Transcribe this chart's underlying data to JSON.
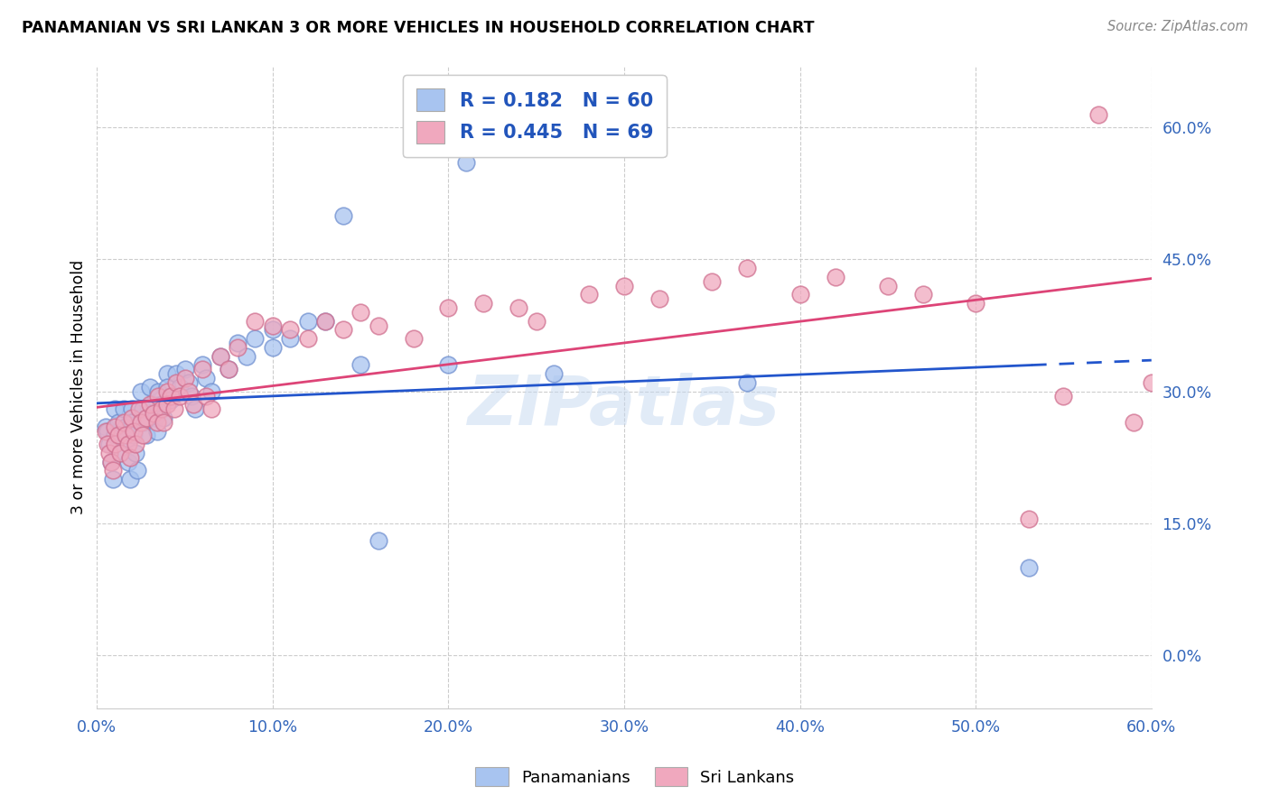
{
  "title": "PANAMANIAN VS SRI LANKAN 3 OR MORE VEHICLES IN HOUSEHOLD CORRELATION CHART",
  "source": "Source: ZipAtlas.com",
  "ylabel": "3 or more Vehicles in Household",
  "xlim": [
    0.0,
    0.6
  ],
  "ylim": [
    -0.06,
    0.67
  ],
  "ytick_vals": [
    0.0,
    0.15,
    0.3,
    0.45,
    0.6
  ],
  "xtick_vals": [
    0.0,
    0.1,
    0.2,
    0.3,
    0.4,
    0.5,
    0.6
  ],
  "R_pan": 0.182,
  "N_pan": 60,
  "R_sri": 0.445,
  "N_sri": 69,
  "pan_color": "#a8c4f0",
  "pan_edge": "#7090d0",
  "sri_color": "#f0a8be",
  "sri_edge": "#d07090",
  "pan_line_color": "#2255cc",
  "sri_line_color": "#dd4477",
  "pan_x": [
    0.005,
    0.006,
    0.007,
    0.008,
    0.009,
    0.01,
    0.01,
    0.012,
    0.013,
    0.015,
    0.016,
    0.017,
    0.018,
    0.019,
    0.02,
    0.02,
    0.021,
    0.022,
    0.023,
    0.025,
    0.026,
    0.027,
    0.028,
    0.03,
    0.032,
    0.033,
    0.034,
    0.035,
    0.037,
    0.038,
    0.04,
    0.04,
    0.042,
    0.045,
    0.047,
    0.05,
    0.052,
    0.054,
    0.056,
    0.06,
    0.062,
    0.065,
    0.07,
    0.075,
    0.08,
    0.085,
    0.09,
    0.1,
    0.1,
    0.11,
    0.12,
    0.13,
    0.14,
    0.15,
    0.16,
    0.2,
    0.21,
    0.26,
    0.37,
    0.53
  ],
  "pan_y": [
    0.26,
    0.255,
    0.24,
    0.22,
    0.2,
    0.28,
    0.25,
    0.265,
    0.23,
    0.28,
    0.26,
    0.245,
    0.22,
    0.2,
    0.28,
    0.265,
    0.25,
    0.23,
    0.21,
    0.3,
    0.28,
    0.265,
    0.25,
    0.305,
    0.285,
    0.27,
    0.255,
    0.3,
    0.285,
    0.27,
    0.32,
    0.305,
    0.29,
    0.32,
    0.305,
    0.325,
    0.31,
    0.295,
    0.28,
    0.33,
    0.315,
    0.3,
    0.34,
    0.325,
    0.355,
    0.34,
    0.36,
    0.37,
    0.35,
    0.36,
    0.38,
    0.38,
    0.5,
    0.33,
    0.13,
    0.33,
    0.56,
    0.32,
    0.31,
    0.1
  ],
  "sri_x": [
    0.005,
    0.006,
    0.007,
    0.008,
    0.009,
    0.01,
    0.01,
    0.012,
    0.013,
    0.015,
    0.016,
    0.018,
    0.019,
    0.02,
    0.021,
    0.022,
    0.024,
    0.025,
    0.026,
    0.028,
    0.03,
    0.032,
    0.034,
    0.035,
    0.037,
    0.038,
    0.04,
    0.04,
    0.042,
    0.044,
    0.045,
    0.047,
    0.05,
    0.052,
    0.055,
    0.06,
    0.062,
    0.065,
    0.07,
    0.075,
    0.08,
    0.09,
    0.1,
    0.11,
    0.12,
    0.13,
    0.14,
    0.15,
    0.16,
    0.18,
    0.2,
    0.22,
    0.24,
    0.25,
    0.28,
    0.3,
    0.32,
    0.35,
    0.37,
    0.4,
    0.42,
    0.45,
    0.47,
    0.5,
    0.53,
    0.55,
    0.57,
    0.59,
    0.6
  ],
  "sri_y": [
    0.255,
    0.24,
    0.23,
    0.22,
    0.21,
    0.26,
    0.24,
    0.25,
    0.23,
    0.265,
    0.25,
    0.24,
    0.225,
    0.27,
    0.255,
    0.24,
    0.28,
    0.265,
    0.25,
    0.27,
    0.285,
    0.275,
    0.265,
    0.295,
    0.28,
    0.265,
    0.3,
    0.285,
    0.295,
    0.28,
    0.31,
    0.295,
    0.315,
    0.3,
    0.285,
    0.325,
    0.295,
    0.28,
    0.34,
    0.325,
    0.35,
    0.38,
    0.375,
    0.37,
    0.36,
    0.38,
    0.37,
    0.39,
    0.375,
    0.36,
    0.395,
    0.4,
    0.395,
    0.38,
    0.41,
    0.42,
    0.405,
    0.425,
    0.44,
    0.41,
    0.43,
    0.42,
    0.41,
    0.4,
    0.155,
    0.295,
    0.615,
    0.265,
    0.31
  ]
}
